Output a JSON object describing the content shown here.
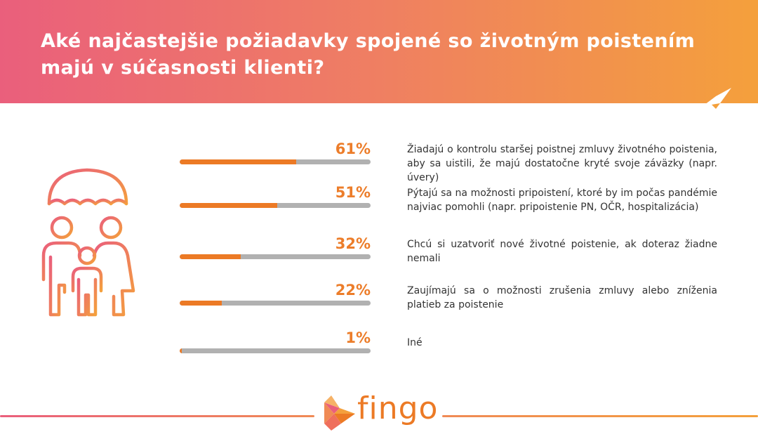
{
  "header": {
    "title": "Aké najčastejšie požiadavky spojené so životným poistením majú v súčasnosti klienti?"
  },
  "brand": {
    "name": "fingo",
    "accent": "#ec7a25"
  },
  "icons": {
    "illustration": "family-umbrella-icon",
    "logo": "fingo-fish-logo-icon"
  },
  "chart_data": {
    "type": "bar",
    "orientation": "horizontal",
    "title": "Aké najčastejšie požiadavky spojené so životným poistením majú v súčasnosti klienti?",
    "xlim": [
      0,
      100
    ],
    "unit": "%",
    "categories": [
      "Žiadajú o kontrolu staršej poistnej zmluvy životného poistenia, aby sa uistili, že majú dostatočne kryté svoje záväzky (napr. úvery)",
      "Pýtajú sa na možnosti pripoistení, ktoré by im počas pandémie najviac pomohli (napr. pripoistenie PN, OČR, hospitalizácia)",
      "Chcú si uzatvoriť nové životné poistenie, ak doteraz žiadne nemali",
      "Zaujímajú sa o možnosti zrušenia zmluvy alebo zníženia platieb za poistenie",
      "Iné"
    ],
    "values": [
      61,
      51,
      32,
      22,
      1
    ],
    "labels": [
      "61%",
      "51%",
      "32%",
      "22%",
      "1%"
    ],
    "bar_color": "#ec7a25",
    "track_color": "#b1b1b1",
    "grid": false
  }
}
